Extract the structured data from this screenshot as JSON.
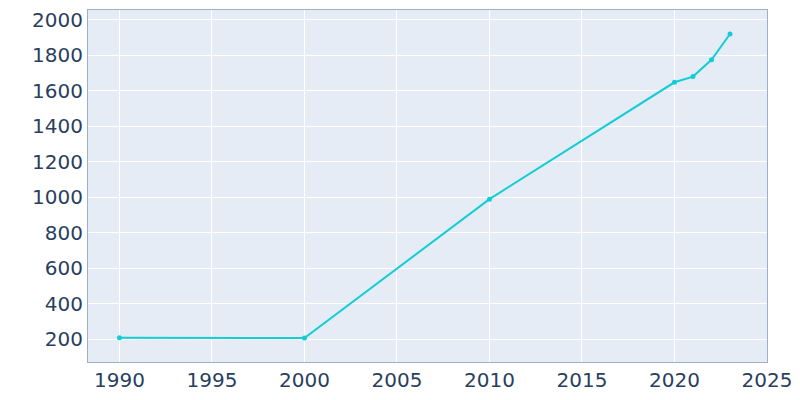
{
  "chart_data": {
    "type": "line",
    "x": [
      1990,
      2000,
      2010,
      2020,
      2021,
      2022,
      2023
    ],
    "values": [
      210,
      208,
      990,
      1648,
      1680,
      1775,
      1920
    ],
    "color": "#12cdd4",
    "marker": "circle",
    "xlim": [
      1988.3,
      2025
    ],
    "xticks": [
      1990,
      1995,
      2000,
      2005,
      2010,
      2015,
      2020,
      2025
    ],
    "ylim": [
      73,
      2055
    ],
    "yticks": [
      200,
      400,
      600,
      800,
      1000,
      1200,
      1400,
      1600,
      1800,
      2000
    ],
    "grid": true
  }
}
